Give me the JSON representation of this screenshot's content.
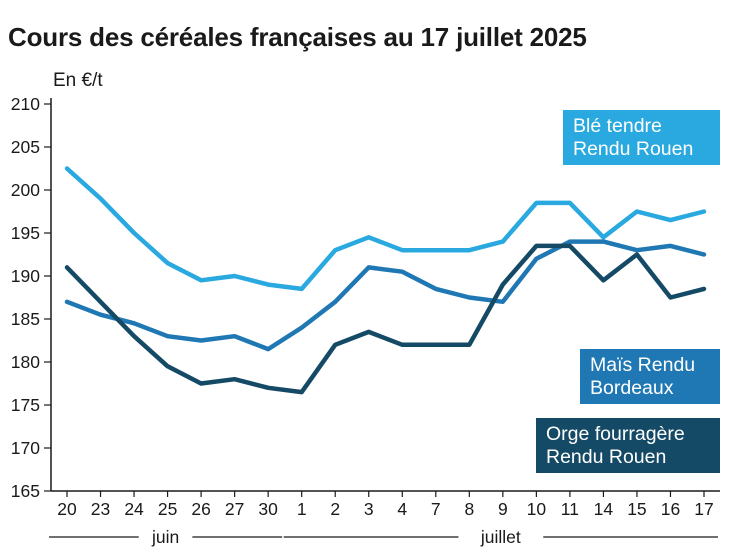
{
  "title": "Cours des céréales françaises au 17 juillet 2025",
  "chart_data": {
    "type": "line",
    "title": "Cours des céréales françaises au 17 juillet 2025",
    "ylabel": "En €/t",
    "xlabel": "",
    "ylim": [
      165,
      210
    ],
    "yticks": [
      165,
      170,
      175,
      180,
      185,
      190,
      195,
      200,
      205,
      210
    ],
    "categories": [
      "20",
      "23",
      "24",
      "25",
      "26",
      "27",
      "30",
      "1",
      "2",
      "3",
      "4",
      "7",
      "8",
      "9",
      "10",
      "11",
      "14",
      "15",
      "16",
      "17"
    ],
    "month_labels": [
      {
        "label": "juin",
        "from": 0,
        "to": 6
      },
      {
        "label": "juillet",
        "from": 7,
        "to": 19
      }
    ],
    "grid": false,
    "series": [
      {
        "name": "Blé tendre Rendu Rouen",
        "label_lines": [
          "Blé tendre",
          "Rendu Rouen"
        ],
        "color": "#29a9e0",
        "values": [
          202.5,
          199,
          195,
          191.5,
          189.5,
          190,
          189,
          188.5,
          193,
          194.5,
          193,
          193,
          193,
          194,
          198.5,
          198.5,
          194.5,
          197.5,
          196.5,
          197.5
        ]
      },
      {
        "name": "Maïs Rendu Bordeaux",
        "label_lines": [
          "Maïs Rendu",
          "Bordeaux"
        ],
        "color": "#1f78b4",
        "values": [
          187,
          185.5,
          184.5,
          183,
          182.5,
          183,
          181.5,
          184,
          187,
          191,
          190.5,
          188.5,
          187.5,
          187,
          192,
          194,
          194,
          193,
          193.5,
          192.5
        ]
      },
      {
        "name": "Orge fourragère Rendu Rouen",
        "label_lines": [
          "Orge fourragère",
          "Rendu Rouen"
        ],
        "color": "#154a66",
        "values": [
          191,
          187,
          183,
          179.5,
          177.5,
          178,
          177,
          176.5,
          182,
          183.5,
          182,
          182,
          182,
          189,
          193.5,
          193.5,
          189.5,
          192.5,
          187.5,
          188.5
        ]
      }
    ]
  }
}
